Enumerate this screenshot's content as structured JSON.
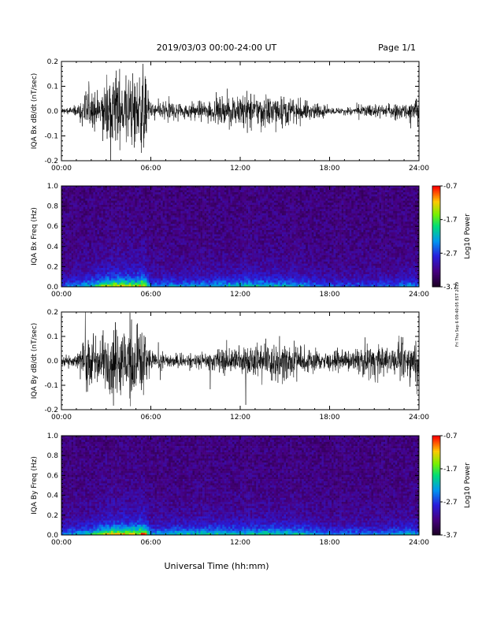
{
  "header": {
    "title": "2019/03/03  00:00-24:00 UT",
    "page": "Page 1/1"
  },
  "footer": {
    "xlabel": "Universal Time (hh:mm)",
    "side_note": "Fri Thu Sep 6 09:40:05 EST 2019"
  },
  "chart_data": [
    {
      "type": "line",
      "ylabel": "IQA Bx dB/dt (nT/sec)",
      "ylim": [
        -0.2,
        0.2
      ],
      "yticks": [
        "0.2",
        "0.1",
        "0.0",
        "-0.1",
        "-0.2"
      ],
      "xticks": [
        "00:00",
        "06:00",
        "12:00",
        "18:00",
        "24:00"
      ],
      "xlim_hours": [
        0,
        24
      ],
      "envelope_hours": [
        0,
        1,
        1.5,
        2,
        2.5,
        3,
        3.5,
        4,
        4.5,
        5,
        5.5,
        6,
        7,
        8,
        9,
        10,
        11,
        12,
        13,
        14,
        15,
        16,
        17,
        18,
        19,
        20,
        21,
        22,
        23,
        24
      ],
      "envelope_amplitude": [
        0.02,
        0.03,
        0.1,
        0.15,
        0.08,
        0.18,
        0.22,
        0.22,
        0.22,
        0.22,
        0.22,
        0.05,
        0.06,
        0.05,
        0.05,
        0.06,
        0.08,
        0.1,
        0.1,
        0.09,
        0.08,
        0.06,
        0.05,
        0.02,
        0.02,
        0.03,
        0.04,
        0.04,
        0.04,
        0.1
      ],
      "line_color": "#000000"
    },
    {
      "type": "heatmap",
      "ylabel": "IQA Bx Freq (Hz)",
      "ylim": [
        0.0,
        1.0
      ],
      "yticks": [
        "1.0",
        "0.8",
        "0.6",
        "0.4",
        "0.2",
        "0.0"
      ],
      "xticks": [
        "00:00",
        "06:00",
        "12:00",
        "18:00",
        "24:00"
      ],
      "colorbar_label": "Log10 Power",
      "colorbar_ticks": [
        "-0.7",
        "-1.7",
        "-2.7",
        "-3.7"
      ],
      "low_band_intensity_hours": [
        0,
        2,
        3,
        4,
        5,
        5.5,
        6,
        10,
        12,
        14,
        16,
        18,
        20,
        22,
        23.5,
        24
      ],
      "low_band_intensity": [
        0.2,
        0.35,
        0.55,
        0.6,
        0.55,
        0.7,
        0.25,
        0.3,
        0.35,
        0.35,
        0.3,
        0.2,
        0.2,
        0.2,
        0.3,
        0.2
      ]
    },
    {
      "type": "line",
      "ylabel": "IQA By dB/dt (nT/sec)",
      "ylim": [
        -0.2,
        0.2
      ],
      "yticks": [
        "0.2",
        "0.1",
        "0.0",
        "-0.1",
        "-0.2"
      ],
      "xticks": [
        "00:00",
        "06:00",
        "12:00",
        "18:00",
        "24:00"
      ],
      "xlim_hours": [
        0,
        24
      ],
      "envelope_hours": [
        0,
        1,
        1.5,
        2,
        2.5,
        3,
        3.5,
        4,
        4.5,
        5,
        5.5,
        6,
        7,
        8,
        9,
        10,
        11,
        12,
        13,
        14,
        15,
        16,
        17,
        18,
        19,
        20,
        21,
        22,
        23,
        24
      ],
      "envelope_amplitude": [
        0.03,
        0.04,
        0.12,
        0.2,
        0.1,
        0.2,
        0.22,
        0.22,
        0.22,
        0.22,
        0.22,
        0.04,
        0.04,
        0.04,
        0.04,
        0.05,
        0.08,
        0.09,
        0.1,
        0.1,
        0.12,
        0.09,
        0.06,
        0.05,
        0.05,
        0.08,
        0.1,
        0.09,
        0.1,
        0.12
      ],
      "line_color": "#000000"
    },
    {
      "type": "heatmap",
      "ylabel": "IQA By Freq (Hz)",
      "ylim": [
        0.0,
        1.0
      ],
      "yticks": [
        "1.0",
        "0.8",
        "0.6",
        "0.4",
        "0.2",
        "0.0"
      ],
      "xticks": [
        "00:00",
        "06:00",
        "12:00",
        "18:00",
        "24:00"
      ],
      "colorbar_label": "Log10 Power",
      "colorbar_ticks": [
        "-0.7",
        "-1.7",
        "-2.7",
        "-3.7"
      ],
      "low_band_intensity_hours": [
        0,
        2,
        3,
        4,
        5,
        5.5,
        6,
        10,
        12,
        14,
        16,
        18,
        20,
        22,
        23.5,
        24
      ],
      "low_band_intensity": [
        0.25,
        0.35,
        0.6,
        0.65,
        0.6,
        0.75,
        0.3,
        0.4,
        0.35,
        0.4,
        0.35,
        0.25,
        0.25,
        0.25,
        0.35,
        0.25
      ]
    }
  ]
}
